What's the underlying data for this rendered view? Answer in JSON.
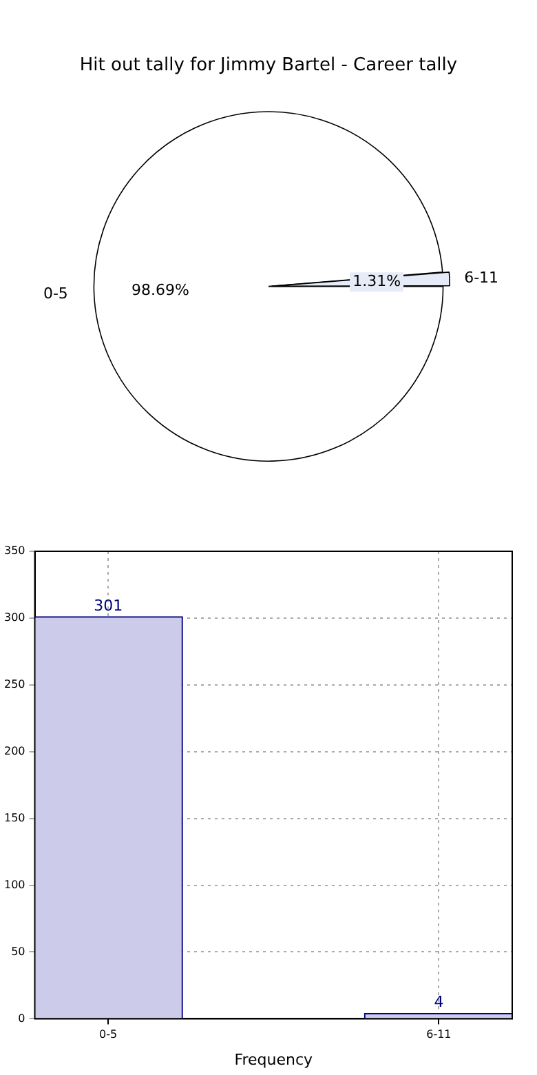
{
  "chart_data": [
    {
      "type": "pie",
      "title": "Hit out tally for Jimmy Bartel - Career tally",
      "categories": [
        "0-5",
        "6-11"
      ],
      "values": [
        98.69,
        1.31
      ],
      "colors": [
        "#ffffff",
        "#e6ecf7"
      ],
      "value_labels": [
        "98.69%",
        "1.31%"
      ]
    },
    {
      "type": "bar",
      "xlabel": "Frequency",
      "categories": [
        "0-5",
        "6-11"
      ],
      "values": [
        301,
        4
      ],
      "color": "#ccccea",
      "ylim": [
        0,
        350
      ],
      "yticks": [
        0,
        50,
        100,
        150,
        200,
        250,
        300,
        350
      ],
      "grid": true,
      "data_labels": true
    }
  ]
}
